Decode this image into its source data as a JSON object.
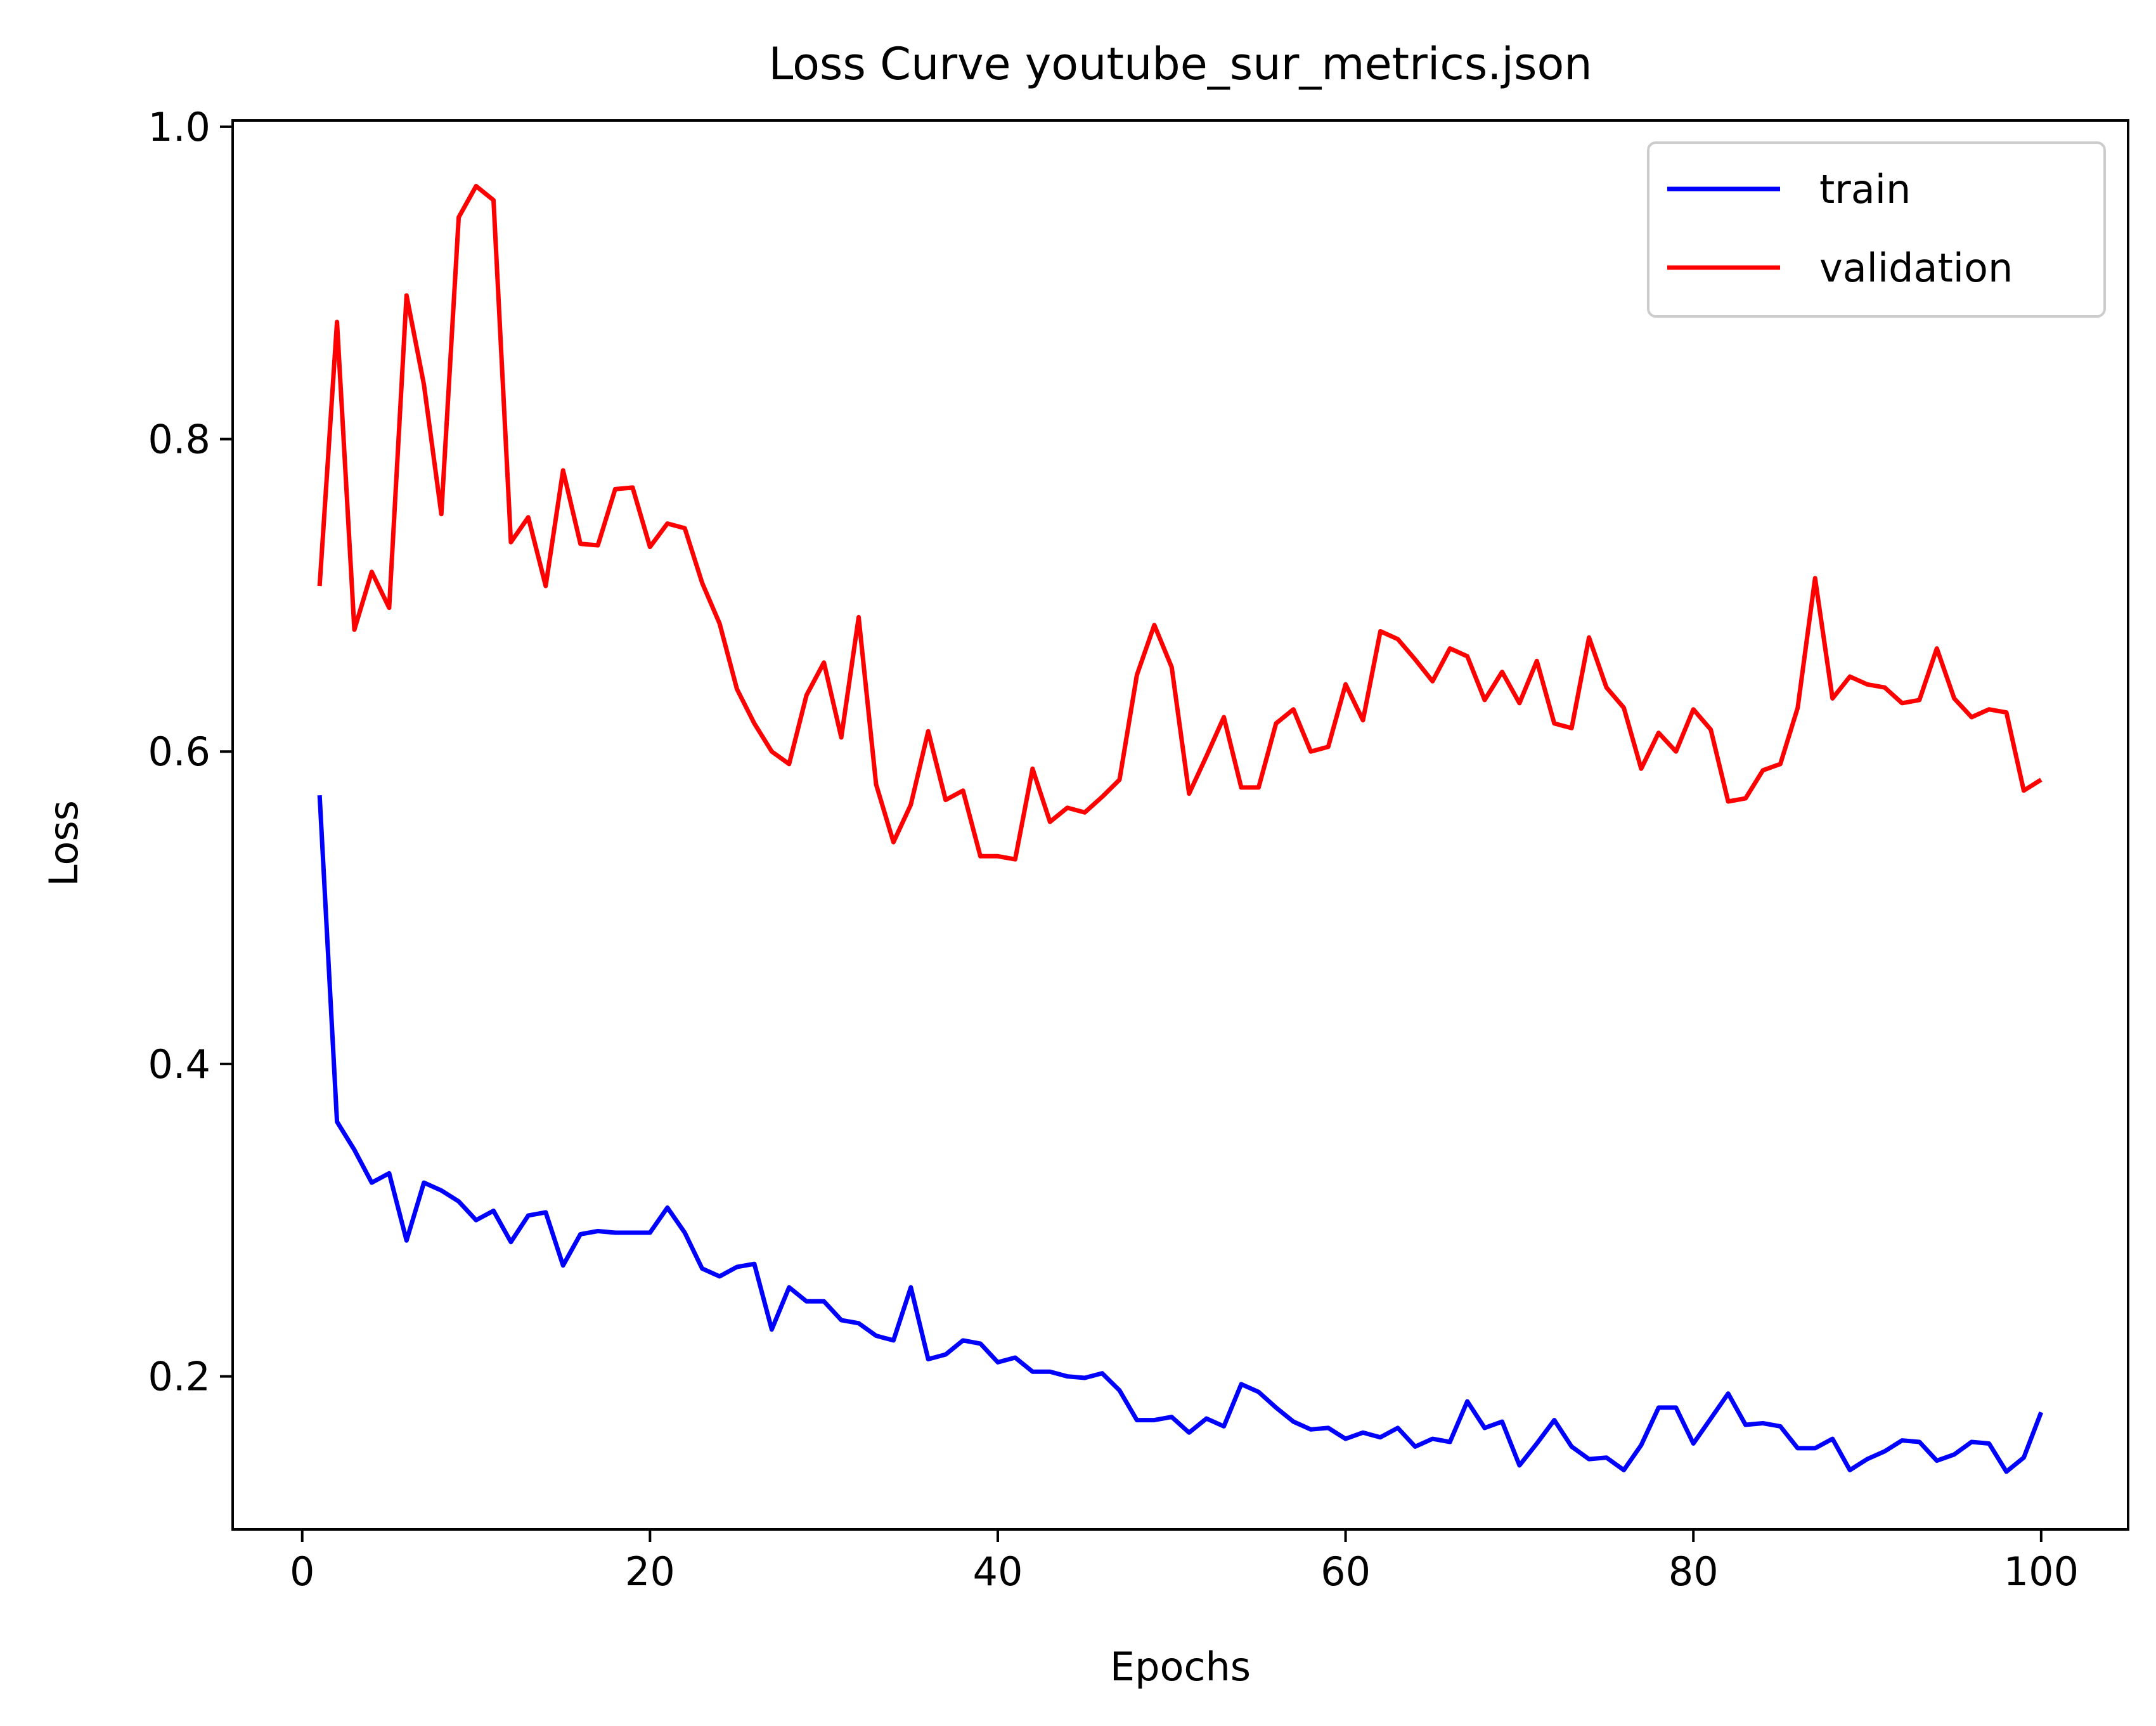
{
  "chart_data": {
    "type": "line",
    "title": "Loss Curve youtube_sur_metrics.json",
    "xlabel": "Epochs",
    "ylabel": "Loss",
    "xlim": [
      -4,
      105
    ],
    "ylim": [
      0.102,
      1.004
    ],
    "xticks": [
      0,
      20,
      40,
      60,
      80,
      100
    ],
    "yticks": [
      0.2,
      0.4,
      0.6,
      0.8,
      1.0
    ],
    "xtick_labels": [
      "0",
      "20",
      "40",
      "60",
      "80",
      "100"
    ],
    "ytick_labels": [
      "0.2",
      "0.4",
      "0.6",
      "0.8",
      "1.0"
    ],
    "grid": false,
    "legend_position": "top-right",
    "x": [
      1,
      2,
      3,
      4,
      5,
      6,
      7,
      8,
      9,
      10,
      11,
      12,
      13,
      14,
      15,
      16,
      17,
      18,
      19,
      20,
      21,
      22,
      23,
      24,
      25,
      26,
      27,
      28,
      29,
      30,
      31,
      32,
      33,
      34,
      35,
      36,
      37,
      38,
      39,
      40,
      41,
      42,
      43,
      44,
      45,
      46,
      47,
      48,
      49,
      50,
      51,
      52,
      53,
      54,
      55,
      56,
      57,
      58,
      59,
      60,
      61,
      62,
      63,
      64,
      65,
      66,
      67,
      68,
      69,
      70,
      71,
      72,
      73,
      74,
      75,
      76,
      77,
      78,
      79,
      80,
      81,
      82,
      83,
      84,
      85,
      86,
      87,
      88,
      89,
      90,
      91,
      92,
      93,
      94,
      95,
      96,
      97,
      98,
      99,
      100
    ],
    "series": [
      {
        "name": "train",
        "color": "#0000ff",
        "values": [
          0.572,
          0.363,
          0.345,
          0.324,
          0.33,
          0.287,
          0.324,
          0.319,
          0.312,
          0.3,
          0.306,
          0.286,
          0.303,
          0.305,
          0.271,
          0.291,
          0.293,
          0.292,
          0.292,
          0.292,
          0.308,
          0.292,
          0.269,
          0.264,
          0.27,
          0.272,
          0.23,
          0.257,
          0.248,
          0.248,
          0.236,
          0.234,
          0.226,
          0.223,
          0.257,
          0.211,
          0.214,
          0.223,
          0.221,
          0.209,
          0.212,
          0.203,
          0.203,
          0.2,
          0.199,
          0.202,
          0.191,
          0.172,
          0.172,
          0.174,
          0.164,
          0.173,
          0.168,
          0.195,
          0.19,
          0.18,
          0.171,
          0.166,
          0.167,
          0.16,
          0.164,
          0.161,
          0.167,
          0.155,
          0.16,
          0.158,
          0.184,
          0.167,
          0.171,
          0.143,
          0.157,
          0.172,
          0.155,
          0.147,
          0.148,
          0.14,
          0.156,
          0.18,
          0.18,
          0.157,
          0.173,
          0.189,
          0.169,
          0.17,
          0.168,
          0.154,
          0.154,
          0.16,
          0.14,
          0.147,
          0.152,
          0.159,
          0.158,
          0.146,
          0.15,
          0.158,
          0.157,
          0.139,
          0.148,
          0.177
        ]
      },
      {
        "name": "validation",
        "color": "#ff0000",
        "values": [
          0.706,
          0.875,
          0.678,
          0.715,
          0.692,
          0.892,
          0.835,
          0.752,
          0.942,
          0.962,
          0.953,
          0.734,
          0.75,
          0.706,
          0.78,
          0.733,
          0.732,
          0.768,
          0.769,
          0.731,
          0.746,
          0.743,
          0.708,
          0.682,
          0.64,
          0.618,
          0.6,
          0.592,
          0.636,
          0.657,
          0.609,
          0.686,
          0.579,
          0.542,
          0.566,
          0.613,
          0.569,
          0.575,
          0.533,
          0.533,
          0.531,
          0.589,
          0.555,
          0.564,
          0.561,
          0.571,
          0.582,
          0.649,
          0.681,
          0.654,
          0.573,
          0.597,
          0.622,
          0.577,
          0.577,
          0.618,
          0.627,
          0.6,
          0.603,
          0.643,
          0.62,
          0.677,
          0.672,
          0.659,
          0.645,
          0.666,
          0.661,
          0.633,
          0.651,
          0.631,
          0.658,
          0.618,
          0.615,
          0.673,
          0.641,
          0.628,
          0.589,
          0.612,
          0.6,
          0.627,
          0.614,
          0.568,
          0.57,
          0.588,
          0.592,
          0.628,
          0.711,
          0.634,
          0.648,
          0.643,
          0.641,
          0.631,
          0.633,
          0.666,
          0.634,
          0.622,
          0.627,
          0.625,
          0.575,
          0.582
        ]
      }
    ]
  }
}
